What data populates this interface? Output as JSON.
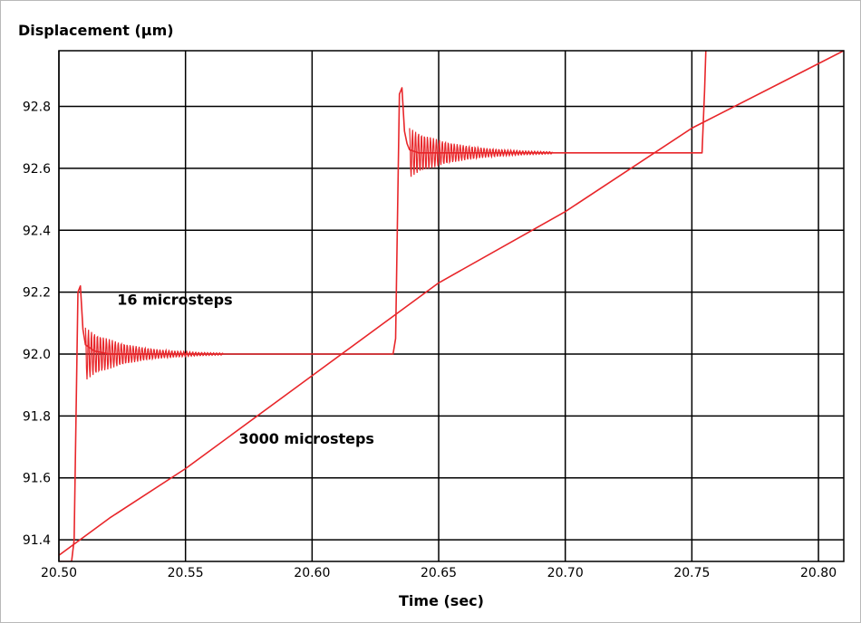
{
  "chart_data": {
    "type": "line",
    "title": "",
    "ylabel": "Displacement (µm)",
    "xlabel": "Time (sec)",
    "xlim": [
      20.5,
      20.81
    ],
    "ylim": [
      91.33,
      92.98
    ],
    "grid": true,
    "xticks": [
      20.5,
      20.55,
      20.6,
      20.65,
      20.7,
      20.75,
      20.8
    ],
    "yticks": [
      91.4,
      91.6,
      91.8,
      92.0,
      92.2,
      92.4,
      92.6,
      92.8
    ],
    "xtick_labels": [
      "20.50",
      "20.55",
      "20.60",
      "20.65",
      "20.70",
      "20.75",
      "20.80"
    ],
    "ytick_labels": [
      "91.4",
      "91.6",
      "91.8",
      "92.0",
      "92.2",
      "92.4",
      "92.6",
      "92.8"
    ],
    "series_color": "#e8262a",
    "annotations": [
      {
        "text": "16 microsteps",
        "x": 20.523,
        "y": 92.16
      },
      {
        "text": "3000 microsteps",
        "x": 20.571,
        "y": 91.71
      }
    ],
    "series": [
      {
        "name": "",
        "x": [
          20.5,
          20.505,
          20.506,
          20.5075,
          20.5085,
          20.5095,
          20.5105,
          20.514,
          20.52,
          20.53,
          20.545,
          20.56,
          20.58,
          20.6,
          20.632,
          20.633,
          20.6345,
          20.6355,
          20.6365,
          20.6375,
          20.6385,
          20.642,
          20.65,
          20.66,
          20.675,
          20.69,
          20.71,
          20.73,
          20.754,
          20.755,
          20.7555
        ],
        "y": [
          91.33,
          91.33,
          91.4,
          92.2,
          92.22,
          92.08,
          92.03,
          92.01,
          92.0,
          92.0,
          92.0,
          92.0,
          92.0,
          92.0,
          92.0,
          92.05,
          92.84,
          92.86,
          92.72,
          92.68,
          92.66,
          92.65,
          92.65,
          92.65,
          92.65,
          92.65,
          92.65,
          92.65,
          92.65,
          92.85,
          92.98
        ]
      },
      {
        "name": "",
        "x": [
          20.5,
          20.52,
          20.55,
          20.6,
          20.65,
          20.7,
          20.75,
          20.81
        ],
        "y": [
          91.35,
          91.47,
          91.63,
          91.93,
          92.23,
          92.46,
          92.73,
          92.98
        ]
      }
    ]
  }
}
